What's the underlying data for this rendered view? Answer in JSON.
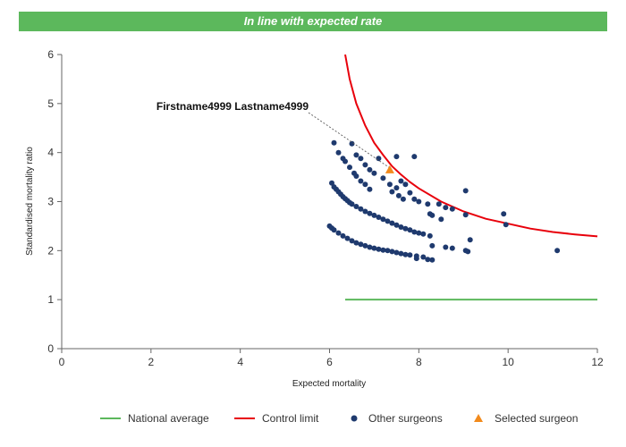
{
  "banner": {
    "text": "In line with expected rate",
    "color": "#5cb85c"
  },
  "chart_data": {
    "type": "scatter",
    "title": "",
    "xlabel": "Expected mortality",
    "ylabel": "Standardised mortality ratio",
    "xlim": [
      0,
      12
    ],
    "ylim": [
      0,
      6
    ],
    "x_ticks": [
      0,
      2,
      4,
      6,
      8,
      10,
      12
    ],
    "y_ticks": [
      0,
      1,
      2,
      3,
      4,
      5,
      6
    ],
    "grid": false,
    "legend_position": "bottom",
    "colors": {
      "national": "#5cb85c",
      "control": "#e8000b",
      "other": "#1f3a6e",
      "selected": "#f28a1c"
    },
    "national_average": {
      "name": "National average",
      "x_range": [
        6.35,
        12
      ],
      "y": 1.0
    },
    "control_limit": {
      "name": "Control limit",
      "points": [
        [
          6.35,
          6.0
        ],
        [
          6.45,
          5.5
        ],
        [
          6.6,
          5.0
        ],
        [
          6.8,
          4.55
        ],
        [
          7.0,
          4.2
        ],
        [
          7.2,
          3.95
        ],
        [
          7.4,
          3.72
        ],
        [
          7.6,
          3.55
        ],
        [
          7.8,
          3.4
        ],
        [
          8.0,
          3.27
        ],
        [
          8.5,
          3.0
        ],
        [
          9.0,
          2.8
        ],
        [
          9.5,
          2.65
        ],
        [
          10.0,
          2.55
        ],
        [
          10.5,
          2.45
        ],
        [
          11.0,
          2.38
        ],
        [
          11.5,
          2.33
        ],
        [
          12.0,
          2.29
        ]
      ]
    },
    "other_surgeons": {
      "name": "Other surgeons",
      "points": [
        [
          6.1,
          4.2
        ],
        [
          6.5,
          4.18
        ],
        [
          6.2,
          4.0
        ],
        [
          6.3,
          3.88
        ],
        [
          6.35,
          3.82
        ],
        [
          6.45,
          3.7
        ],
        [
          6.55,
          3.58
        ],
        [
          6.6,
          3.52
        ],
        [
          6.7,
          3.42
        ],
        [
          6.8,
          3.35
        ],
        [
          6.9,
          3.25
        ],
        [
          6.6,
          3.95
        ],
        [
          6.7,
          3.88
        ],
        [
          6.8,
          3.75
        ],
        [
          6.9,
          3.65
        ],
        [
          7.0,
          3.58
        ],
        [
          7.1,
          3.88
        ],
        [
          7.5,
          3.92
        ],
        [
          7.9,
          3.92
        ],
        [
          7.2,
          3.48
        ],
        [
          7.35,
          3.35
        ],
        [
          7.5,
          3.28
        ],
        [
          7.6,
          3.42
        ],
        [
          7.7,
          3.35
        ],
        [
          7.8,
          3.18
        ],
        [
          7.9,
          3.05
        ],
        [
          8.0,
          3.0
        ],
        [
          8.2,
          2.95
        ],
        [
          8.45,
          2.95
        ],
        [
          8.6,
          2.88
        ],
        [
          8.75,
          2.85
        ],
        [
          9.05,
          2.73
        ],
        [
          9.05,
          3.22
        ],
        [
          9.9,
          2.75
        ],
        [
          9.95,
          2.53
        ],
        [
          8.25,
          2.75
        ],
        [
          8.3,
          2.72
        ],
        [
          8.5,
          2.64
        ],
        [
          7.4,
          3.2
        ],
        [
          7.55,
          3.12
        ],
        [
          7.65,
          3.05
        ],
        [
          6.05,
          3.38
        ],
        [
          6.1,
          3.3
        ],
        [
          6.15,
          3.25
        ],
        [
          6.2,
          3.2
        ],
        [
          6.25,
          3.15
        ],
        [
          6.3,
          3.1
        ],
        [
          6.35,
          3.06
        ],
        [
          6.4,
          3.02
        ],
        [
          6.45,
          2.98
        ],
        [
          6.5,
          2.95
        ],
        [
          6.6,
          2.9
        ],
        [
          6.7,
          2.85
        ],
        [
          6.8,
          2.8
        ],
        [
          6.9,
          2.76
        ],
        [
          7.0,
          2.72
        ],
        [
          7.1,
          2.68
        ],
        [
          7.2,
          2.64
        ],
        [
          7.3,
          2.6
        ],
        [
          7.4,
          2.56
        ],
        [
          7.5,
          2.52
        ],
        [
          7.6,
          2.48
        ],
        [
          7.7,
          2.45
        ],
        [
          7.8,
          2.42
        ],
        [
          7.9,
          2.38
        ],
        [
          8.0,
          2.36
        ],
        [
          8.1,
          2.34
        ],
        [
          8.25,
          2.3
        ],
        [
          6.0,
          2.5
        ],
        [
          6.05,
          2.46
        ],
        [
          6.1,
          2.42
        ],
        [
          6.2,
          2.36
        ],
        [
          6.3,
          2.3
        ],
        [
          6.4,
          2.25
        ],
        [
          6.5,
          2.2
        ],
        [
          6.6,
          2.16
        ],
        [
          6.7,
          2.13
        ],
        [
          6.8,
          2.1
        ],
        [
          6.9,
          2.07
        ],
        [
          7.0,
          2.05
        ],
        [
          7.1,
          2.03
        ],
        [
          7.2,
          2.01
        ],
        [
          7.3,
          2.0
        ],
        [
          7.4,
          1.98
        ],
        [
          7.5,
          1.96
        ],
        [
          7.6,
          1.94
        ],
        [
          7.7,
          1.92
        ],
        [
          7.8,
          1.91
        ],
        [
          7.95,
          1.89
        ],
        [
          8.1,
          1.87
        ],
        [
          8.3,
          2.1
        ],
        [
          8.6,
          2.07
        ],
        [
          8.75,
          2.05
        ],
        [
          9.05,
          2.0
        ],
        [
          9.1,
          1.98
        ],
        [
          9.15,
          2.22
        ],
        [
          7.95,
          1.84
        ],
        [
          8.2,
          1.82
        ],
        [
          8.3,
          1.81
        ],
        [
          11.1,
          2.0
        ]
      ]
    },
    "selected_surgeon": {
      "name": "Selected surgeon",
      "label": "Firstname4999 Lastname4999",
      "x": 7.35,
      "y": 3.65
    }
  },
  "legend": {
    "national_label": "National average",
    "control_label": "Control limit",
    "other_label": "Other surgeons",
    "selected_label": "Selected surgeon"
  }
}
